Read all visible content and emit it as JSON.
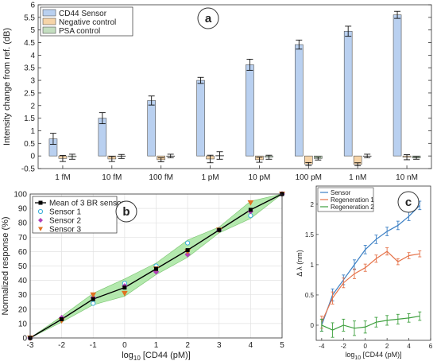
{
  "chart_data": [
    {
      "panel_label": "a",
      "type": "bar",
      "ylabel": "Intensity change from ref. (dB)",
      "ylim": [
        -0.5,
        6
      ],
      "yticks": [
        "-0.5",
        "0",
        "0.5",
        "1",
        "1.5",
        "2",
        "2.5",
        "3",
        "3.5",
        "4",
        "4.5",
        "5",
        "5.5",
        "6"
      ],
      "categories": [
        "1 fM",
        "10 fM",
        "100 fM",
        "1 pM",
        "10 pM",
        "100 pM",
        "1 nM",
        "10 nM"
      ],
      "legend_position": "top-left",
      "series": [
        {
          "name": "CD44 Sensor",
          "color": "#b9d0f0",
          "values": [
            0.68,
            1.5,
            2.2,
            3.0,
            3.62,
            4.42,
            4.95,
            5.6
          ],
          "errors": [
            0.22,
            0.22,
            0.18,
            0.12,
            0.22,
            0.18,
            0.2,
            0.14
          ]
        },
        {
          "name": "Negative control",
          "color": "#f6d4a8",
          "values": [
            -0.1,
            -0.12,
            -0.15,
            -0.12,
            -0.15,
            -0.32,
            -0.33,
            -0.05
          ],
          "errors": [
            0.12,
            0.1,
            0.08,
            0.15,
            0.1,
            0.06,
            0.06,
            0.1
          ]
        },
        {
          "name": "PSA control",
          "color": "#c4dec0",
          "values": [
            -0.03,
            -0.02,
            0.0,
            0.02,
            -0.05,
            -0.1,
            0.0,
            -0.08
          ],
          "errors": [
            0.1,
            0.08,
            0.07,
            0.15,
            0.08,
            0.06,
            0.07,
            0.05
          ]
        }
      ]
    },
    {
      "panel_label": "b",
      "type": "line",
      "xlabel": "log10 [CD44 (pM)]",
      "xlabel_main": "log",
      "xlabel_sub": "10",
      "xlabel_rest": " [CD44 (pM)]",
      "ylabel": "Normalized response (%)",
      "xlim": [
        -3,
        5
      ],
      "ylim": [
        0,
        100
      ],
      "xticks": [
        "-3",
        "-2",
        "-1",
        "0",
        "1",
        "2",
        "3",
        "4",
        "5"
      ],
      "yticks": [
        "0",
        "10",
        "20",
        "30",
        "40",
        "50",
        "60",
        "70",
        "80",
        "90",
        "100"
      ],
      "legend_position": "top-left",
      "x": [
        -3,
        -2,
        -1,
        0,
        1,
        2,
        3,
        4,
        5
      ],
      "mean": {
        "name": "Mean of 3 BR sensors",
        "color": "#000000",
        "values": [
          0,
          13,
          27,
          35,
          48,
          61,
          75,
          89,
          100
        ]
      },
      "band": {
        "lower": [
          0,
          11,
          23,
          29,
          44,
          56,
          73,
          83,
          100
        ],
        "upper": [
          0,
          15,
          31,
          41,
          52,
          68,
          77,
          95,
          100
        ],
        "color": "#a8e6a0"
      },
      "series": [
        {
          "name": "Sensor 1",
          "color": "#3aaed8",
          "marker": "circle",
          "values": [
            0,
            13,
            24,
            38,
            50,
            66,
            75,
            85,
            100
          ]
        },
        {
          "name": "Sensor 2",
          "color": "#b040b8",
          "marker": "diamond",
          "values": [
            0,
            14,
            28,
            36,
            46,
            58,
            75,
            88,
            100
          ]
        },
        {
          "name": "Sensor 3",
          "color": "#e07020",
          "marker": "triangle",
          "values": [
            0,
            12,
            30,
            31,
            48,
            60,
            75,
            94,
            100
          ]
        }
      ]
    },
    {
      "panel_label": "c",
      "type": "line",
      "xlabel": "log10 [CD44 (pM)]",
      "xlabel_main": "log",
      "xlabel_sub": "10",
      "xlabel_rest": " [CD44 (pM)]",
      "ylabel": "Δ λ (nm)",
      "xlim": [
        -4.5,
        6
      ],
      "ylim": [
        -0.25,
        2.3
      ],
      "xticks": [
        "-4",
        "-2",
        "0",
        "2",
        "4",
        "6"
      ],
      "yticks": [
        "0",
        "0.5",
        "1",
        "1.5",
        "2"
      ],
      "legend_position": "top-left",
      "x": [
        -4,
        -3,
        -2,
        -1,
        0,
        1,
        2,
        3,
        4,
        5
      ],
      "series": [
        {
          "name": "Sensor",
          "color": "#3b7fc4",
          "values": [
            0.0,
            0.5,
            0.75,
            1.0,
            1.25,
            1.42,
            1.55,
            1.65,
            1.8,
            1.98
          ],
          "errors": [
            0.1,
            0.1,
            0.08,
            0.08,
            0.07,
            0.07,
            0.07,
            0.07,
            0.07,
            0.07
          ]
        },
        {
          "name": "Regeneration 1",
          "color": "#e5734a",
          "values": [
            0.05,
            0.45,
            0.7,
            0.85,
            0.95,
            1.1,
            1.22,
            1.05,
            1.15,
            1.18
          ],
          "errors": [
            0.1,
            0.1,
            0.08,
            0.08,
            0.06,
            0.06,
            0.06,
            0.05,
            0.05,
            0.05
          ]
        },
        {
          "name": "Regeneration 2",
          "color": "#3ea03e",
          "values": [
            0.0,
            -0.08,
            0.0,
            -0.05,
            -0.03,
            0.05,
            0.08,
            0.1,
            0.12,
            0.15
          ],
          "errors": [
            0.1,
            0.12,
            0.1,
            0.12,
            0.1,
            0.08,
            0.08,
            0.08,
            0.07,
            0.07
          ]
        }
      ]
    }
  ]
}
